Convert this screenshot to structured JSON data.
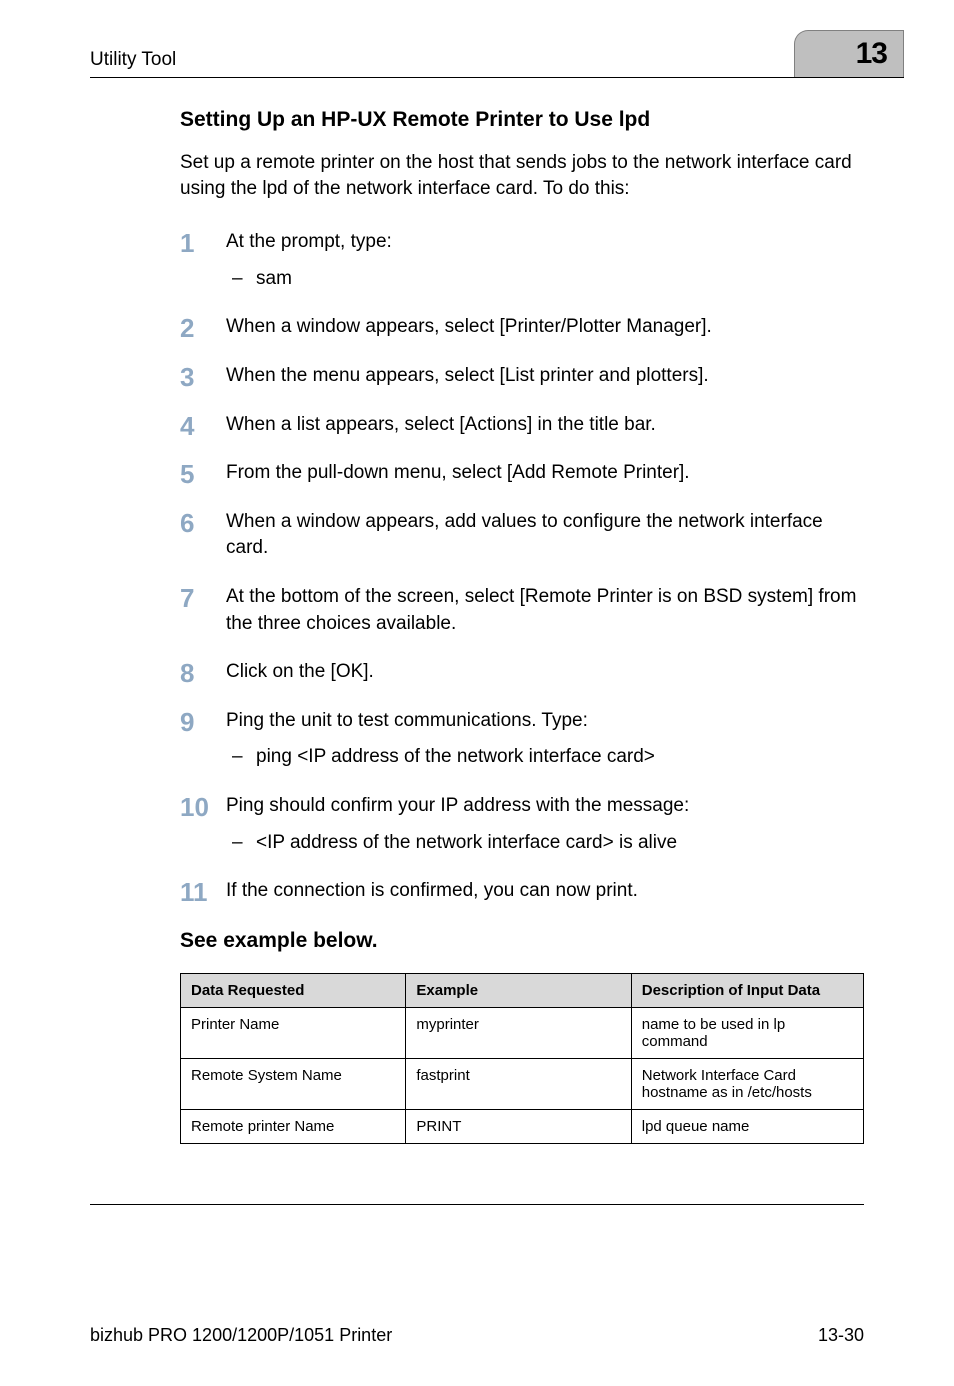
{
  "header": {
    "utility": "Utility Tool",
    "page_number": "13"
  },
  "section": {
    "title": "Setting Up an HP-UX Remote Printer to Use lpd",
    "intro": "Set up a remote printer on the host that sends jobs to the network interface card using the lpd of the network interface card. To do this:"
  },
  "steps": [
    {
      "text": "At the prompt, type:",
      "sub": [
        "sam"
      ]
    },
    {
      "text": "When a window appears, select [Printer/Plotter Manager]."
    },
    {
      "text": "When the menu appears, select [List printer and plotters]."
    },
    {
      "text": "When a list appears, select [Actions] in the title bar."
    },
    {
      "text": "From the pull-down menu, select [Add Remote Printer]."
    },
    {
      "text": "When a window appears, add values to configure the network interface card."
    },
    {
      "text": "At the bottom of the screen, select [Remote Printer is on BSD system] from the three choices available."
    },
    {
      "text": "Click on the [OK]."
    },
    {
      "text": "Ping the unit to test communications. Type:",
      "sub": [
        "ping <IP address of the network interface card>"
      ]
    },
    {
      "text": "Ping should confirm your IP address with the message:",
      "sub": [
        "<IP address of the network interface card> is alive"
      ]
    },
    {
      "text": "If the connection is confirmed, you can now print."
    }
  ],
  "example_heading": "See example below.",
  "table": {
    "columns": [
      "Data Requested",
      "Example",
      "Description of Input Data"
    ],
    "rows": [
      [
        "Printer Name",
        "myprinter",
        "name to be used in lp command"
      ],
      [
        "Remote System Name",
        "fastprint",
        "Network Interface Card hostname as in /etc/hosts"
      ],
      [
        "Remote printer Name",
        "PRINT",
        "lpd queue name"
      ]
    ],
    "col_widths": [
      "33%",
      "33%",
      "34%"
    ]
  },
  "footer": {
    "left": "bizhub PRO 1200/1200P/1051 Printer",
    "right": "13-30"
  },
  "colors": {
    "step_number": "#8ea8c3",
    "tab_bg": "#bfbfbf",
    "th_bg": "#d9d9d9"
  }
}
